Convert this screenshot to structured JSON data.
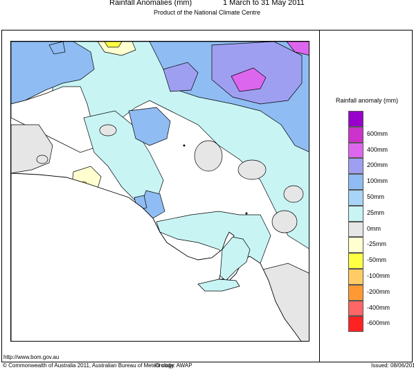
{
  "title": "Rainfall Anomalies (mm)",
  "date_range": "1 March to 31 May 2011",
  "subtitle": "Product of the National Climate Centre",
  "legend": {
    "title": "Rainfall anomaly (mm)",
    "items": [
      {
        "label": "",
        "color": "#9900cc"
      },
      {
        "label": "600mm",
        "color": "#cc33cc"
      },
      {
        "label": "400mm",
        "color": "#dd66ee"
      },
      {
        "label": "200mm",
        "color": "#9f9ff2"
      },
      {
        "label": "100mm",
        "color": "#8fbcf2"
      },
      {
        "label": "50mm",
        "color": "#a8d4f7"
      },
      {
        "label": "25mm",
        "color": "#c8f4f4"
      },
      {
        "label": "0mm",
        "color": "#e6e6e6"
      },
      {
        "label": "-25mm",
        "color": "#ffffd0"
      },
      {
        "label": "-50mm",
        "color": "#ffff44"
      },
      {
        "label": "-100mm",
        "color": "#ffcc66"
      },
      {
        "label": "-200mm",
        "color": "#ff9933"
      },
      {
        "label": "-400mm",
        "color": "#ff6666"
      },
      {
        "label": "-600mm",
        "color": "#ff2222"
      }
    ]
  },
  "footer": {
    "website": "http://www.bom.gov.au",
    "copyright": "© Commonwealth of Australia 2011, Australian Bureau of Meteorology",
    "id_code": "ID code: AWAP",
    "issued": "Issued: 08/06/2011"
  }
}
